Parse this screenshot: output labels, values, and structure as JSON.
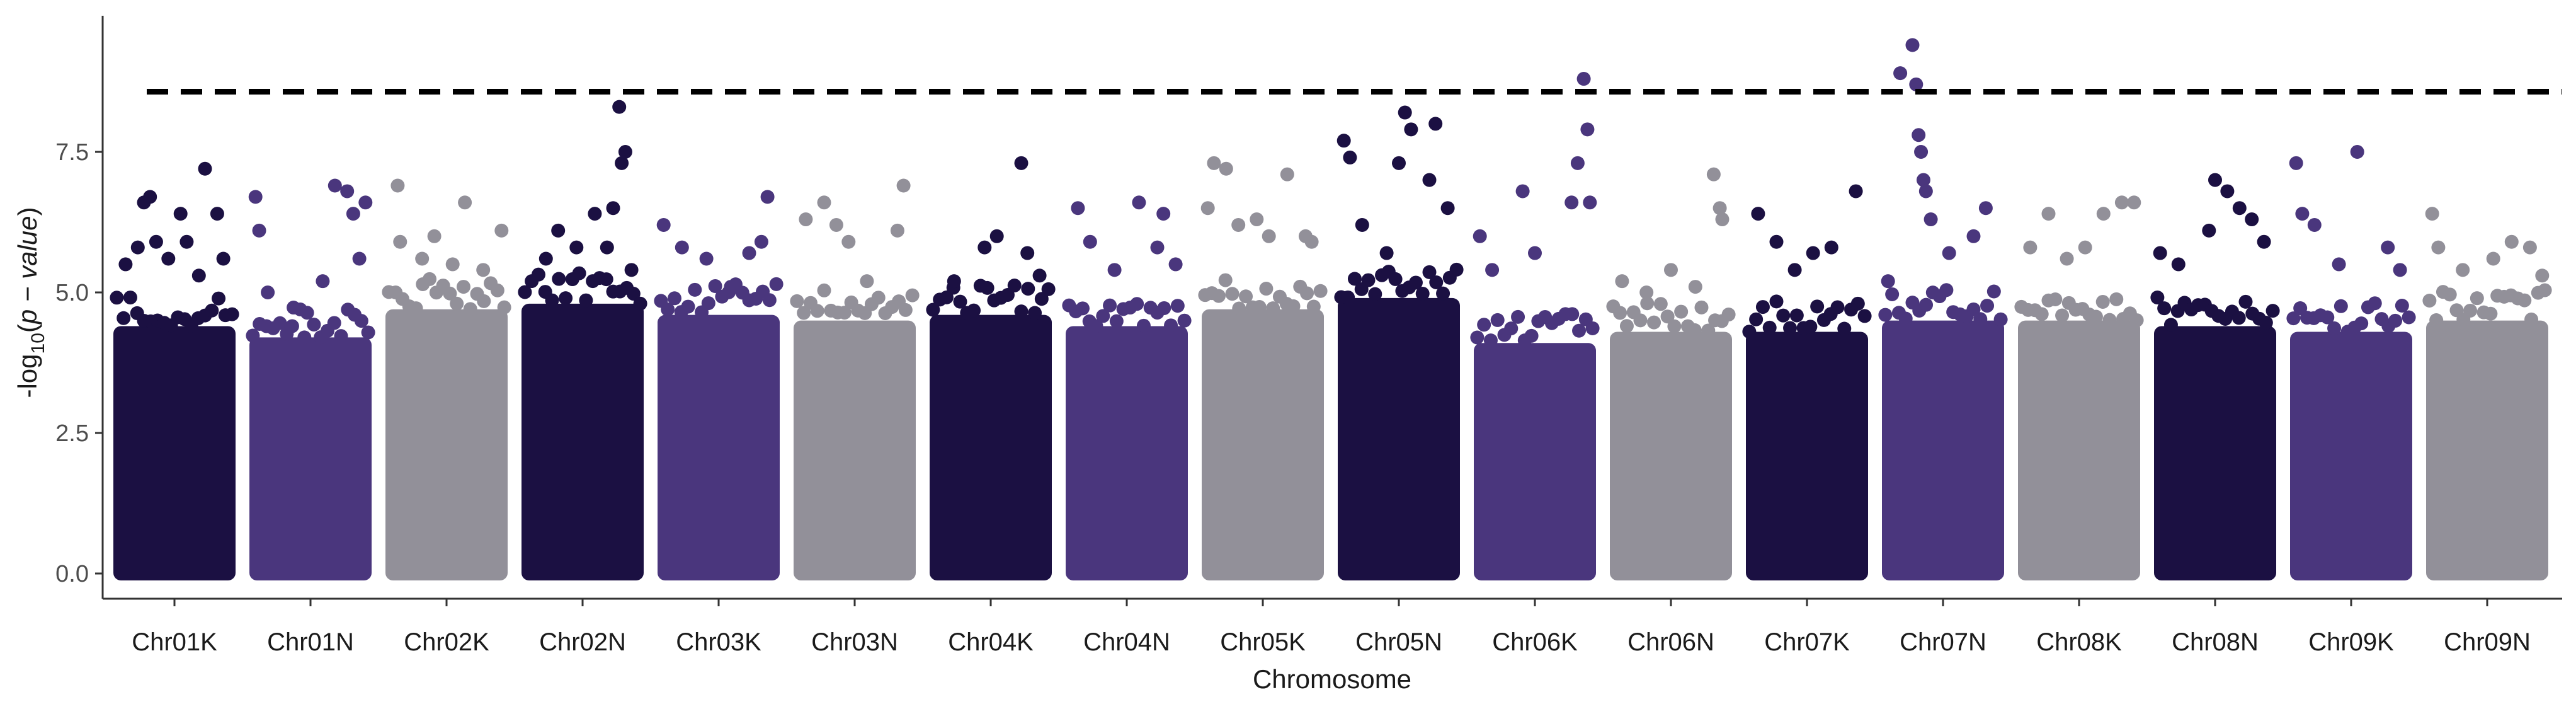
{
  "chart_data": {
    "type": "scatter",
    "subtype": "manhattan",
    "title": "",
    "xlabel": "Chromosome",
    "ylabel_parts": {
      "prefix": "-log",
      "subscript": "10",
      "open": "(",
      "italic": "p − value",
      "close": ")"
    },
    "ylim": [
      0,
      9.4
    ],
    "yticks": [
      0.0,
      2.5,
      5.0,
      7.5
    ],
    "ytick_labels": [
      "0.0",
      "2.5",
      "5.0",
      "7.5"
    ],
    "threshold": 8.57,
    "threshold_style": "dashed",
    "grid": false,
    "legend": "none",
    "colors": [
      "#1b1042",
      "#4a367d",
      "#929099"
    ],
    "categories": [
      "Chr01K",
      "Chr01N",
      "Chr02K",
      "Chr02N",
      "Chr03K",
      "Chr03N",
      "Chr04K",
      "Chr04N",
      "Chr05K",
      "Chr05N",
      "Chr06K",
      "Chr06N",
      "Chr07K",
      "Chr07N",
      "Chr08K",
      "Chr08N",
      "Chr09K",
      "Chr09N"
    ],
    "dense_ceiling": [
      4.4,
      4.2,
      4.7,
      4.8,
      4.6,
      4.5,
      4.6,
      4.4,
      4.7,
      4.9,
      4.1,
      4.3,
      4.3,
      4.5,
      4.5,
      4.4,
      4.3,
      4.5
    ],
    "series": [
      {
        "chromosome": "Chr01K",
        "points": [
          [
            0.1,
            5.5
          ],
          [
            0.2,
            5.8
          ],
          [
            0.25,
            6.6
          ],
          [
            0.3,
            6.7
          ],
          [
            0.35,
            5.9
          ],
          [
            0.45,
            5.6
          ],
          [
            0.55,
            6.4
          ],
          [
            0.6,
            5.9
          ],
          [
            0.7,
            5.3
          ],
          [
            0.75,
            7.2
          ],
          [
            0.85,
            6.4
          ],
          [
            0.9,
            5.6
          ]
        ]
      },
      {
        "chromosome": "Chr01N",
        "points": [
          [
            0.05,
            6.7
          ],
          [
            0.08,
            6.1
          ],
          [
            0.15,
            5.0
          ],
          [
            0.35,
            4.4
          ],
          [
            0.45,
            4.2
          ],
          [
            0.6,
            5.2
          ],
          [
            0.7,
            6.9
          ],
          [
            0.8,
            6.8
          ],
          [
            0.85,
            6.4
          ],
          [
            0.9,
            5.6
          ],
          [
            0.95,
            6.6
          ]
        ]
      },
      {
        "chromosome": "Chr02K",
        "points": [
          [
            0.1,
            6.9
          ],
          [
            0.12,
            5.9
          ],
          [
            0.3,
            5.6
          ],
          [
            0.4,
            6.0
          ],
          [
            0.55,
            5.5
          ],
          [
            0.65,
            6.6
          ],
          [
            0.8,
            5.4
          ],
          [
            0.95,
            6.1
          ]
        ]
      },
      {
        "chromosome": "Chr02N",
        "points": [
          [
            0.2,
            5.6
          ],
          [
            0.3,
            6.1
          ],
          [
            0.45,
            5.8
          ],
          [
            0.6,
            6.4
          ],
          [
            0.7,
            5.8
          ],
          [
            0.75,
            6.5
          ],
          [
            0.8,
            8.3
          ],
          [
            0.82,
            7.3
          ],
          [
            0.85,
            7.5
          ],
          [
            0.9,
            5.4
          ]
        ]
      },
      {
        "chromosome": "Chr03K",
        "points": [
          [
            0.05,
            6.2
          ],
          [
            0.2,
            5.8
          ],
          [
            0.4,
            5.6
          ],
          [
            0.6,
            5.1
          ],
          [
            0.75,
            5.7
          ],
          [
            0.85,
            5.9
          ],
          [
            0.9,
            6.7
          ]
        ]
      },
      {
        "chromosome": "Chr03N",
        "points": [
          [
            0.1,
            6.3
          ],
          [
            0.25,
            6.6
          ],
          [
            0.35,
            6.2
          ],
          [
            0.45,
            5.9
          ],
          [
            0.6,
            5.2
          ],
          [
            0.85,
            6.1
          ],
          [
            0.9,
            6.9
          ]
        ]
      },
      {
        "chromosome": "Chr04K",
        "points": [
          [
            0.2,
            5.2
          ],
          [
            0.45,
            5.8
          ],
          [
            0.55,
            6.0
          ],
          [
            0.75,
            7.3
          ],
          [
            0.8,
            5.7
          ],
          [
            0.9,
            5.3
          ]
        ]
      },
      {
        "chromosome": "Chr04N",
        "points": [
          [
            0.1,
            6.5
          ],
          [
            0.2,
            5.9
          ],
          [
            0.4,
            5.4
          ],
          [
            0.6,
            6.6
          ],
          [
            0.75,
            5.8
          ],
          [
            0.8,
            6.4
          ],
          [
            0.9,
            5.5
          ]
        ]
      },
      {
        "chromosome": "Chr05K",
        "points": [
          [
            0.05,
            6.5
          ],
          [
            0.1,
            7.3
          ],
          [
            0.2,
            7.2
          ],
          [
            0.3,
            6.2
          ],
          [
            0.45,
            6.3
          ],
          [
            0.55,
            6.0
          ],
          [
            0.7,
            7.1
          ],
          [
            0.85,
            6.0
          ],
          [
            0.9,
            5.9
          ]
        ]
      },
      {
        "chromosome": "Chr05N",
        "points": [
          [
            0.05,
            7.7
          ],
          [
            0.1,
            7.4
          ],
          [
            0.2,
            6.2
          ],
          [
            0.4,
            5.7
          ],
          [
            0.5,
            7.3
          ],
          [
            0.55,
            8.2
          ],
          [
            0.6,
            7.9
          ],
          [
            0.75,
            7.0
          ],
          [
            0.8,
            8.0
          ],
          [
            0.9,
            6.5
          ]
        ]
      },
      {
        "chromosome": "Chr06K",
        "points": [
          [
            0.05,
            6.0
          ],
          [
            0.15,
            5.4
          ],
          [
            0.4,
            6.8
          ],
          [
            0.5,
            5.7
          ],
          [
            0.8,
            6.6
          ],
          [
            0.85,
            7.3
          ],
          [
            0.9,
            8.8
          ],
          [
            0.93,
            7.9
          ],
          [
            0.95,
            6.6
          ]
        ]
      },
      {
        "chromosome": "Chr06N",
        "points": [
          [
            0.1,
            5.2
          ],
          [
            0.3,
            5.0
          ],
          [
            0.5,
            5.4
          ],
          [
            0.7,
            5.1
          ],
          [
            0.85,
            7.1
          ],
          [
            0.9,
            6.5
          ],
          [
            0.92,
            6.3
          ]
        ]
      },
      {
        "chromosome": "Chr07K",
        "points": [
          [
            0.1,
            6.4
          ],
          [
            0.25,
            5.9
          ],
          [
            0.4,
            5.4
          ],
          [
            0.55,
            5.7
          ],
          [
            0.7,
            5.8
          ],
          [
            0.9,
            6.8
          ]
        ]
      },
      {
        "chromosome": "Chr07N",
        "points": [
          [
            0.05,
            5.2
          ],
          [
            0.15,
            8.9
          ],
          [
            0.25,
            9.4
          ],
          [
            0.28,
            8.7
          ],
          [
            0.3,
            7.8
          ],
          [
            0.32,
            7.5
          ],
          [
            0.34,
            7.0
          ],
          [
            0.36,
            6.8
          ],
          [
            0.4,
            6.3
          ],
          [
            0.55,
            5.7
          ],
          [
            0.75,
            6.0
          ],
          [
            0.85,
            6.5
          ]
        ]
      },
      {
        "chromosome": "Chr08K",
        "points": [
          [
            0.1,
            5.8
          ],
          [
            0.25,
            6.4
          ],
          [
            0.4,
            5.6
          ],
          [
            0.55,
            5.8
          ],
          [
            0.7,
            6.4
          ],
          [
            0.85,
            6.6
          ],
          [
            0.95,
            6.6
          ]
        ]
      },
      {
        "chromosome": "Chr08N",
        "points": [
          [
            0.05,
            5.7
          ],
          [
            0.2,
            5.5
          ],
          [
            0.45,
            6.1
          ],
          [
            0.5,
            7.0
          ],
          [
            0.6,
            6.8
          ],
          [
            0.7,
            6.5
          ],
          [
            0.8,
            6.3
          ],
          [
            0.9,
            5.9
          ]
        ]
      },
      {
        "chromosome": "Chr09K",
        "points": [
          [
            0.05,
            7.3
          ],
          [
            0.1,
            6.4
          ],
          [
            0.2,
            6.2
          ],
          [
            0.4,
            5.5
          ],
          [
            0.55,
            7.5
          ],
          [
            0.8,
            5.8
          ],
          [
            0.9,
            5.4
          ]
        ]
      },
      {
        "chromosome": "Chr09N",
        "points": [
          [
            0.05,
            6.4
          ],
          [
            0.1,
            5.8
          ],
          [
            0.3,
            5.4
          ],
          [
            0.55,
            5.6
          ],
          [
            0.7,
            5.9
          ],
          [
            0.85,
            5.8
          ],
          [
            0.95,
            5.3
          ]
        ]
      }
    ]
  }
}
